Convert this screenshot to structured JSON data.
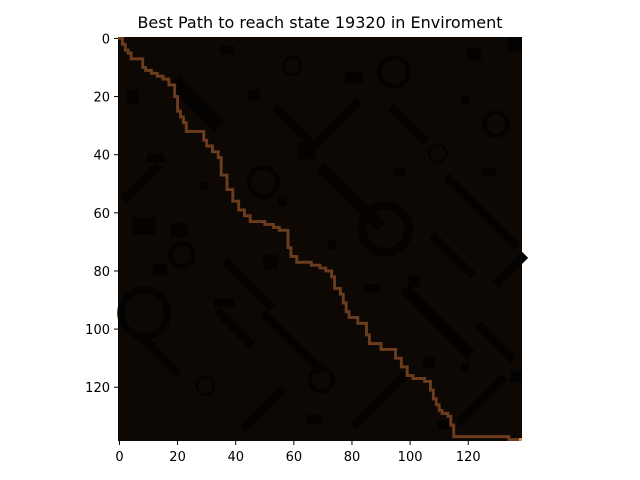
{
  "chart_data": {
    "type": "heatmap",
    "title": "Best Path to reach state 19320 in Enviroment",
    "xlabel": "",
    "ylabel": "",
    "xlim": [
      0,
      139
    ],
    "ylim": [
      139,
      0
    ],
    "x_ticks": [
      0,
      20,
      40,
      60,
      80,
      100,
      120
    ],
    "y_ticks": [
      0,
      20,
      40,
      60,
      80,
      100,
      120
    ],
    "x_tick_labels": [
      "0",
      "20",
      "40",
      "60",
      "80",
      "100",
      "120"
    ],
    "y_tick_labels": [
      "0",
      "20",
      "40",
      "60",
      "80",
      "100",
      "120"
    ],
    "grid": false,
    "background_color": "#0e0804",
    "obstacle_color": "#050302",
    "path_color": "#6b3c1e",
    "goal_color": "#d99a5b",
    "goal_state": 19320,
    "goal_cell": [
      138,
      138
    ],
    "path_vertices": [
      [
        0,
        0
      ],
      [
        1,
        0
      ],
      [
        1,
        2
      ],
      [
        2,
        2
      ],
      [
        2,
        4
      ],
      [
        3,
        4
      ],
      [
        3,
        5
      ],
      [
        4,
        5
      ],
      [
        4,
        7
      ],
      [
        8,
        7
      ],
      [
        8,
        10
      ],
      [
        9,
        10
      ],
      [
        9,
        11
      ],
      [
        11,
        11
      ],
      [
        11,
        12
      ],
      [
        13,
        12
      ],
      [
        13,
        13
      ],
      [
        15,
        13
      ],
      [
        15,
        14
      ],
      [
        17,
        14
      ],
      [
        17,
        16
      ],
      [
        19,
        16
      ],
      [
        19,
        20
      ],
      [
        20,
        20
      ],
      [
        20,
        25
      ],
      [
        21,
        25
      ],
      [
        21,
        27
      ],
      [
        22,
        27
      ],
      [
        22,
        29
      ],
      [
        23,
        29
      ],
      [
        23,
        32
      ],
      [
        29,
        32
      ],
      [
        29,
        35
      ],
      [
        30,
        35
      ],
      [
        30,
        37
      ],
      [
        32,
        37
      ],
      [
        32,
        39
      ],
      [
        34,
        39
      ],
      [
        34,
        41
      ],
      [
        35,
        41
      ],
      [
        35,
        47
      ],
      [
        37,
        47
      ],
      [
        37,
        52
      ],
      [
        39,
        52
      ],
      [
        39,
        56
      ],
      [
        41,
        56
      ],
      [
        41,
        59
      ],
      [
        43,
        59
      ],
      [
        43,
        61
      ],
      [
        45,
        61
      ],
      [
        45,
        63
      ],
      [
        50,
        63
      ],
      [
        50,
        64
      ],
      [
        53,
        64
      ],
      [
        53,
        65
      ],
      [
        55,
        65
      ],
      [
        55,
        66
      ],
      [
        58,
        66
      ],
      [
        58,
        72
      ],
      [
        59,
        72
      ],
      [
        59,
        75
      ],
      [
        61,
        75
      ],
      [
        61,
        77
      ],
      [
        66,
        77
      ],
      [
        66,
        78
      ],
      [
        69,
        78
      ],
      [
        69,
        79
      ],
      [
        71,
        79
      ],
      [
        71,
        80
      ],
      [
        73,
        80
      ],
      [
        73,
        82
      ],
      [
        74,
        82
      ],
      [
        74,
        86
      ],
      [
        76,
        86
      ],
      [
        76,
        88
      ],
      [
        77,
        88
      ],
      [
        77,
        91
      ],
      [
        78,
        91
      ],
      [
        78,
        94
      ],
      [
        79,
        94
      ],
      [
        79,
        96
      ],
      [
        82,
        96
      ],
      [
        82,
        98
      ],
      [
        85,
        98
      ],
      [
        85,
        102
      ],
      [
        86,
        102
      ],
      [
        86,
        105
      ],
      [
        90,
        105
      ],
      [
        90,
        107
      ],
      [
        95,
        107
      ],
      [
        95,
        110
      ],
      [
        97,
        110
      ],
      [
        97,
        113
      ],
      [
        99,
        113
      ],
      [
        99,
        116
      ],
      [
        101,
        116
      ],
      [
        101,
        117
      ],
      [
        105,
        117
      ],
      [
        105,
        118
      ],
      [
        107,
        118
      ],
      [
        107,
        121
      ],
      [
        108,
        121
      ],
      [
        108,
        124
      ],
      [
        109,
        124
      ],
      [
        109,
        126
      ],
      [
        110,
        126
      ],
      [
        110,
        128
      ],
      [
        111,
        128
      ],
      [
        111,
        129
      ],
      [
        113,
        129
      ],
      [
        113,
        130
      ],
      [
        114,
        130
      ],
      [
        114,
        133
      ],
      [
        115,
        133
      ],
      [
        115,
        137
      ],
      [
        134,
        137
      ],
      [
        134,
        138
      ],
      [
        138,
        138
      ]
    ],
    "obstacles": [
      {
        "shape": "ring",
        "cx": 9,
        "cy": 95,
        "r": 8,
        "t": 2.5
      },
      {
        "shape": "ring",
        "cx": 92,
        "cy": 66,
        "r": 8,
        "t": 3
      },
      {
        "shape": "ring",
        "cx": 95,
        "cy": 12,
        "r": 5,
        "t": 1.5
      },
      {
        "shape": "ring",
        "cx": 50,
        "cy": 50,
        "r": 5,
        "t": 1.5
      },
      {
        "shape": "ring",
        "cx": 22,
        "cy": 75,
        "r": 4,
        "t": 1.5
      },
      {
        "shape": "ring",
        "cx": 60,
        "cy": 10,
        "r": 3,
        "t": 1
      },
      {
        "shape": "ring",
        "cx": 130,
        "cy": 30,
        "r": 4,
        "t": 1.5
      },
      {
        "shape": "ring",
        "cx": 110,
        "cy": 40,
        "r": 3,
        "t": 1
      },
      {
        "shape": "ring",
        "cx": 30,
        "cy": 120,
        "r": 3,
        "t": 1
      },
      {
        "shape": "ring",
        "cx": 70,
        "cy": 118,
        "r": 4,
        "t": 1.5
      },
      {
        "shape": "diag",
        "cx": 27,
        "cy": 23,
        "len": 12,
        "w": 5,
        "dir": 1
      },
      {
        "shape": "diag",
        "cx": 80,
        "cy": 55,
        "len": 18,
        "w": 4,
        "dir": 1
      },
      {
        "shape": "diag",
        "cx": 110,
        "cy": 98,
        "len": 20,
        "w": 4,
        "dir": 1
      },
      {
        "shape": "diag",
        "cx": 125,
        "cy": 60,
        "len": 22,
        "w": 3,
        "dir": 1
      },
      {
        "shape": "diag",
        "cx": 60,
        "cy": 105,
        "len": 18,
        "w": 3,
        "dir": 1
      },
      {
        "shape": "diag",
        "cx": 45,
        "cy": 85,
        "len": 14,
        "w": 3,
        "dir": 1
      },
      {
        "shape": "diag",
        "cx": 125,
        "cy": 125,
        "len": 14,
        "w": 3,
        "dir": -1
      },
      {
        "shape": "diag",
        "cx": 130,
        "cy": 105,
        "len": 10,
        "w": 3,
        "dir": 1
      },
      {
        "shape": "diag",
        "cx": 115,
        "cy": 75,
        "len": 12,
        "w": 3,
        "dir": 1
      },
      {
        "shape": "diag",
        "cx": 75,
        "cy": 30,
        "len": 14,
        "w": 3,
        "dir": -1
      },
      {
        "shape": "diag",
        "cx": 100,
        "cy": 30,
        "len": 10,
        "w": 3,
        "dir": 1
      },
      {
        "shape": "diag",
        "cx": 8,
        "cy": 50,
        "len": 10,
        "w": 3,
        "dir": -1
      },
      {
        "shape": "diag",
        "cx": 50,
        "cy": 128,
        "len": 12,
        "w": 3,
        "dir": -1
      },
      {
        "shape": "diag",
        "cx": 90,
        "cy": 125,
        "len": 16,
        "w": 3,
        "dir": -1
      },
      {
        "shape": "diag",
        "cx": 60,
        "cy": 30,
        "len": 10,
        "w": 3,
        "dir": 1
      },
      {
        "shape": "diag",
        "cx": 15,
        "cy": 110,
        "len": 10,
        "w": 3,
        "dir": 1
      },
      {
        "shape": "diag",
        "cx": 135,
        "cy": 80,
        "len": 8,
        "w": 3,
        "dir": -1
      },
      {
        "shape": "diag",
        "cx": 40,
        "cy": 100,
        "len": 10,
        "w": 3,
        "dir": 1
      },
      {
        "shape": "rect",
        "x": 134,
        "y": 0,
        "w": 5,
        "h": 5
      },
      {
        "shape": "rect",
        "x": 62,
        "y": 36,
        "w": 6,
        "h": 6
      },
      {
        "shape": "rect",
        "x": 120,
        "y": 4,
        "w": 5,
        "h": 4
      },
      {
        "shape": "rect",
        "x": 125,
        "y": 45,
        "w": 5,
        "h": 3
      },
      {
        "shape": "rect",
        "x": 5,
        "y": 62,
        "w": 8,
        "h": 6
      },
      {
        "shape": "rect",
        "x": 12,
        "y": 78,
        "w": 5,
        "h": 4
      },
      {
        "shape": "rect",
        "x": 18,
        "y": 64,
        "w": 6,
        "h": 5
      },
      {
        "shape": "rect",
        "x": 3,
        "y": 18,
        "w": 4,
        "h": 5
      },
      {
        "shape": "rect",
        "x": 10,
        "y": 40,
        "w": 6,
        "h": 3
      },
      {
        "shape": "rect",
        "x": 33,
        "y": 90,
        "w": 7,
        "h": 3
      },
      {
        "shape": "rect",
        "x": 50,
        "y": 75,
        "w": 5,
        "h": 5
      },
      {
        "shape": "rect",
        "x": 105,
        "y": 110,
        "w": 4,
        "h": 4
      },
      {
        "shape": "rect",
        "x": 118,
        "y": 112,
        "w": 3,
        "h": 3
      },
      {
        "shape": "rect",
        "x": 35,
        "y": 3,
        "w": 5,
        "h": 3
      },
      {
        "shape": "rect",
        "x": 45,
        "y": 18,
        "w": 4,
        "h": 4
      },
      {
        "shape": "rect",
        "x": 78,
        "y": 12,
        "w": 6,
        "h": 4
      },
      {
        "shape": "rect",
        "x": 95,
        "y": 45,
        "w": 4,
        "h": 3
      },
      {
        "shape": "rect",
        "x": 85,
        "y": 85,
        "w": 5,
        "h": 3
      },
      {
        "shape": "rect",
        "x": 65,
        "y": 130,
        "w": 5,
        "h": 3
      },
      {
        "shape": "rect",
        "x": 110,
        "y": 132,
        "w": 4,
        "h": 3
      },
      {
        "shape": "rect",
        "x": 135,
        "y": 115,
        "w": 4,
        "h": 4
      },
      {
        "shape": "rect",
        "x": 100,
        "y": 82,
        "w": 4,
        "h": 4
      },
      {
        "shape": "rect",
        "x": 28,
        "y": 50,
        "w": 3,
        "h": 3
      },
      {
        "shape": "rect",
        "x": 55,
        "y": 55,
        "w": 3,
        "h": 3
      },
      {
        "shape": "rect",
        "x": 72,
        "y": 70,
        "w": 3,
        "h": 3
      },
      {
        "shape": "rect",
        "x": 118,
        "y": 20,
        "w": 3,
        "h": 3
      }
    ]
  }
}
